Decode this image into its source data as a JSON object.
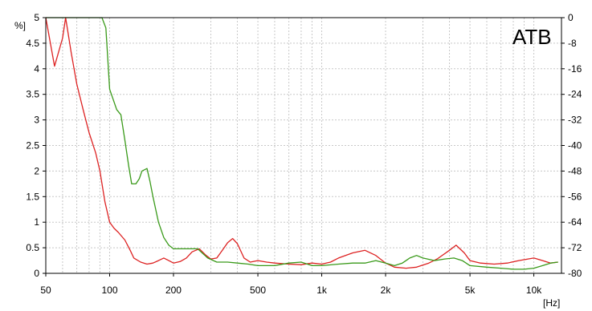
{
  "chart_data": {
    "type": "line",
    "title": "",
    "xlabel": "[Hz]",
    "ylabel": "%]",
    "x_scale": "log",
    "xlim": [
      50,
      13500
    ],
    "ylim": [
      0,
      5
    ],
    "y2lim": [
      -80,
      0
    ],
    "x_ticks": [
      {
        "value": 50,
        "label": "50"
      },
      {
        "value": 100,
        "label": "100"
      },
      {
        "value": 200,
        "label": "200"
      },
      {
        "value": 500,
        "label": "500"
      },
      {
        "value": 1000,
        "label": "1k"
      },
      {
        "value": 2000,
        "label": "2k"
      },
      {
        "value": 5000,
        "label": "5k"
      },
      {
        "value": 10000,
        "label": "10k"
      }
    ],
    "y_ticks": [
      {
        "value": 5,
        "label": "5"
      },
      {
        "value": 4.5,
        "label": "4.5"
      },
      {
        "value": 4,
        "label": "4"
      },
      {
        "value": 3.5,
        "label": "3.5"
      },
      {
        "value": 3,
        "label": "3"
      },
      {
        "value": 2.5,
        "label": "2.5"
      },
      {
        "value": 2,
        "label": "2"
      },
      {
        "value": 1.5,
        "label": "1.5"
      },
      {
        "value": 1,
        "label": "1"
      },
      {
        "value": 0.5,
        "label": "0.5"
      },
      {
        "value": 0,
        "label": "0"
      }
    ],
    "y2_ticks": [
      {
        "value": 0,
        "label": "0"
      },
      {
        "value": -8,
        "label": "-8"
      },
      {
        "value": -16,
        "label": "-16"
      },
      {
        "value": -24,
        "label": "-24"
      },
      {
        "value": -32,
        "label": "-32"
      },
      {
        "value": -40,
        "label": "-40"
      },
      {
        "value": -48,
        "label": "-48"
      },
      {
        "value": -56,
        "label": "-56"
      },
      {
        "value": -64,
        "label": "-64"
      },
      {
        "value": -72,
        "label": "-72"
      },
      {
        "value": -80,
        "label": "-80"
      }
    ],
    "grid": true,
    "legend": "none",
    "brand_label": "ATB",
    "series": [
      {
        "color": "#dd2222",
        "points": [
          [
            50,
            5.0
          ],
          [
            55,
            4.05
          ],
          [
            60,
            4.6
          ],
          [
            62,
            5.0
          ],
          [
            66,
            4.3
          ],
          [
            70,
            3.7
          ],
          [
            75,
            3.2
          ],
          [
            80,
            2.75
          ],
          [
            86,
            2.35
          ],
          [
            90,
            2.0
          ],
          [
            95,
            1.4
          ],
          [
            100,
            1.0
          ],
          [
            105,
            0.88
          ],
          [
            110,
            0.8
          ],
          [
            118,
            0.65
          ],
          [
            125,
            0.45
          ],
          [
            130,
            0.3
          ],
          [
            140,
            0.22
          ],
          [
            150,
            0.18
          ],
          [
            160,
            0.2
          ],
          [
            170,
            0.25
          ],
          [
            180,
            0.3
          ],
          [
            190,
            0.25
          ],
          [
            200,
            0.2
          ],
          [
            215,
            0.23
          ],
          [
            230,
            0.3
          ],
          [
            245,
            0.42
          ],
          [
            265,
            0.48
          ],
          [
            285,
            0.35
          ],
          [
            300,
            0.28
          ],
          [
            320,
            0.3
          ],
          [
            340,
            0.45
          ],
          [
            360,
            0.6
          ],
          [
            380,
            0.68
          ],
          [
            400,
            0.58
          ],
          [
            430,
            0.3
          ],
          [
            460,
            0.22
          ],
          [
            500,
            0.25
          ],
          [
            550,
            0.22
          ],
          [
            600,
            0.2
          ],
          [
            700,
            0.18
          ],
          [
            800,
            0.17
          ],
          [
            900,
            0.2
          ],
          [
            1000,
            0.18
          ],
          [
            1100,
            0.22
          ],
          [
            1200,
            0.3
          ],
          [
            1400,
            0.4
          ],
          [
            1600,
            0.45
          ],
          [
            1800,
            0.35
          ],
          [
            2000,
            0.2
          ],
          [
            2200,
            0.12
          ],
          [
            2500,
            0.1
          ],
          [
            2800,
            0.12
          ],
          [
            3200,
            0.2
          ],
          [
            3500,
            0.28
          ],
          [
            4000,
            0.45
          ],
          [
            4300,
            0.55
          ],
          [
            4700,
            0.4
          ],
          [
            5000,
            0.25
          ],
          [
            5600,
            0.2
          ],
          [
            6500,
            0.18
          ],
          [
            7500,
            0.2
          ],
          [
            8500,
            0.25
          ],
          [
            10000,
            0.3
          ],
          [
            11000,
            0.25
          ],
          [
            12000,
            0.2
          ],
          [
            13000,
            0.22
          ]
        ]
      },
      {
        "color": "#3a9a1a",
        "points": [
          [
            50,
            5.0
          ],
          [
            60,
            5.0
          ],
          [
            70,
            5.0
          ],
          [
            80,
            5.0
          ],
          [
            92,
            5.0
          ],
          [
            96,
            4.8
          ],
          [
            100,
            3.6
          ],
          [
            108,
            3.2
          ],
          [
            113,
            3.1
          ],
          [
            118,
            2.6
          ],
          [
            123,
            2.1
          ],
          [
            127,
            1.75
          ],
          [
            133,
            1.75
          ],
          [
            138,
            1.85
          ],
          [
            142,
            2.0
          ],
          [
            150,
            2.05
          ],
          [
            155,
            1.8
          ],
          [
            160,
            1.5
          ],
          [
            170,
            1.0
          ],
          [
            180,
            0.7
          ],
          [
            190,
            0.55
          ],
          [
            200,
            0.48
          ],
          [
            230,
            0.48
          ],
          [
            260,
            0.48
          ],
          [
            290,
            0.3
          ],
          [
            320,
            0.22
          ],
          [
            360,
            0.22
          ],
          [
            400,
            0.2
          ],
          [
            450,
            0.18
          ],
          [
            500,
            0.15
          ],
          [
            600,
            0.15
          ],
          [
            700,
            0.2
          ],
          [
            800,
            0.22
          ],
          [
            900,
            0.15
          ],
          [
            1000,
            0.15
          ],
          [
            1200,
            0.18
          ],
          [
            1400,
            0.2
          ],
          [
            1600,
            0.2
          ],
          [
            1800,
            0.25
          ],
          [
            2000,
            0.2
          ],
          [
            2200,
            0.15
          ],
          [
            2400,
            0.2
          ],
          [
            2600,
            0.3
          ],
          [
            2800,
            0.35
          ],
          [
            3000,
            0.3
          ],
          [
            3400,
            0.25
          ],
          [
            3800,
            0.28
          ],
          [
            4200,
            0.3
          ],
          [
            4600,
            0.25
          ],
          [
            5000,
            0.15
          ],
          [
            6000,
            0.12
          ],
          [
            7000,
            0.1
          ],
          [
            8000,
            0.08
          ],
          [
            9000,
            0.08
          ],
          [
            10000,
            0.1
          ],
          [
            11000,
            0.15
          ],
          [
            12000,
            0.2
          ],
          [
            13000,
            0.22
          ]
        ]
      }
    ]
  }
}
